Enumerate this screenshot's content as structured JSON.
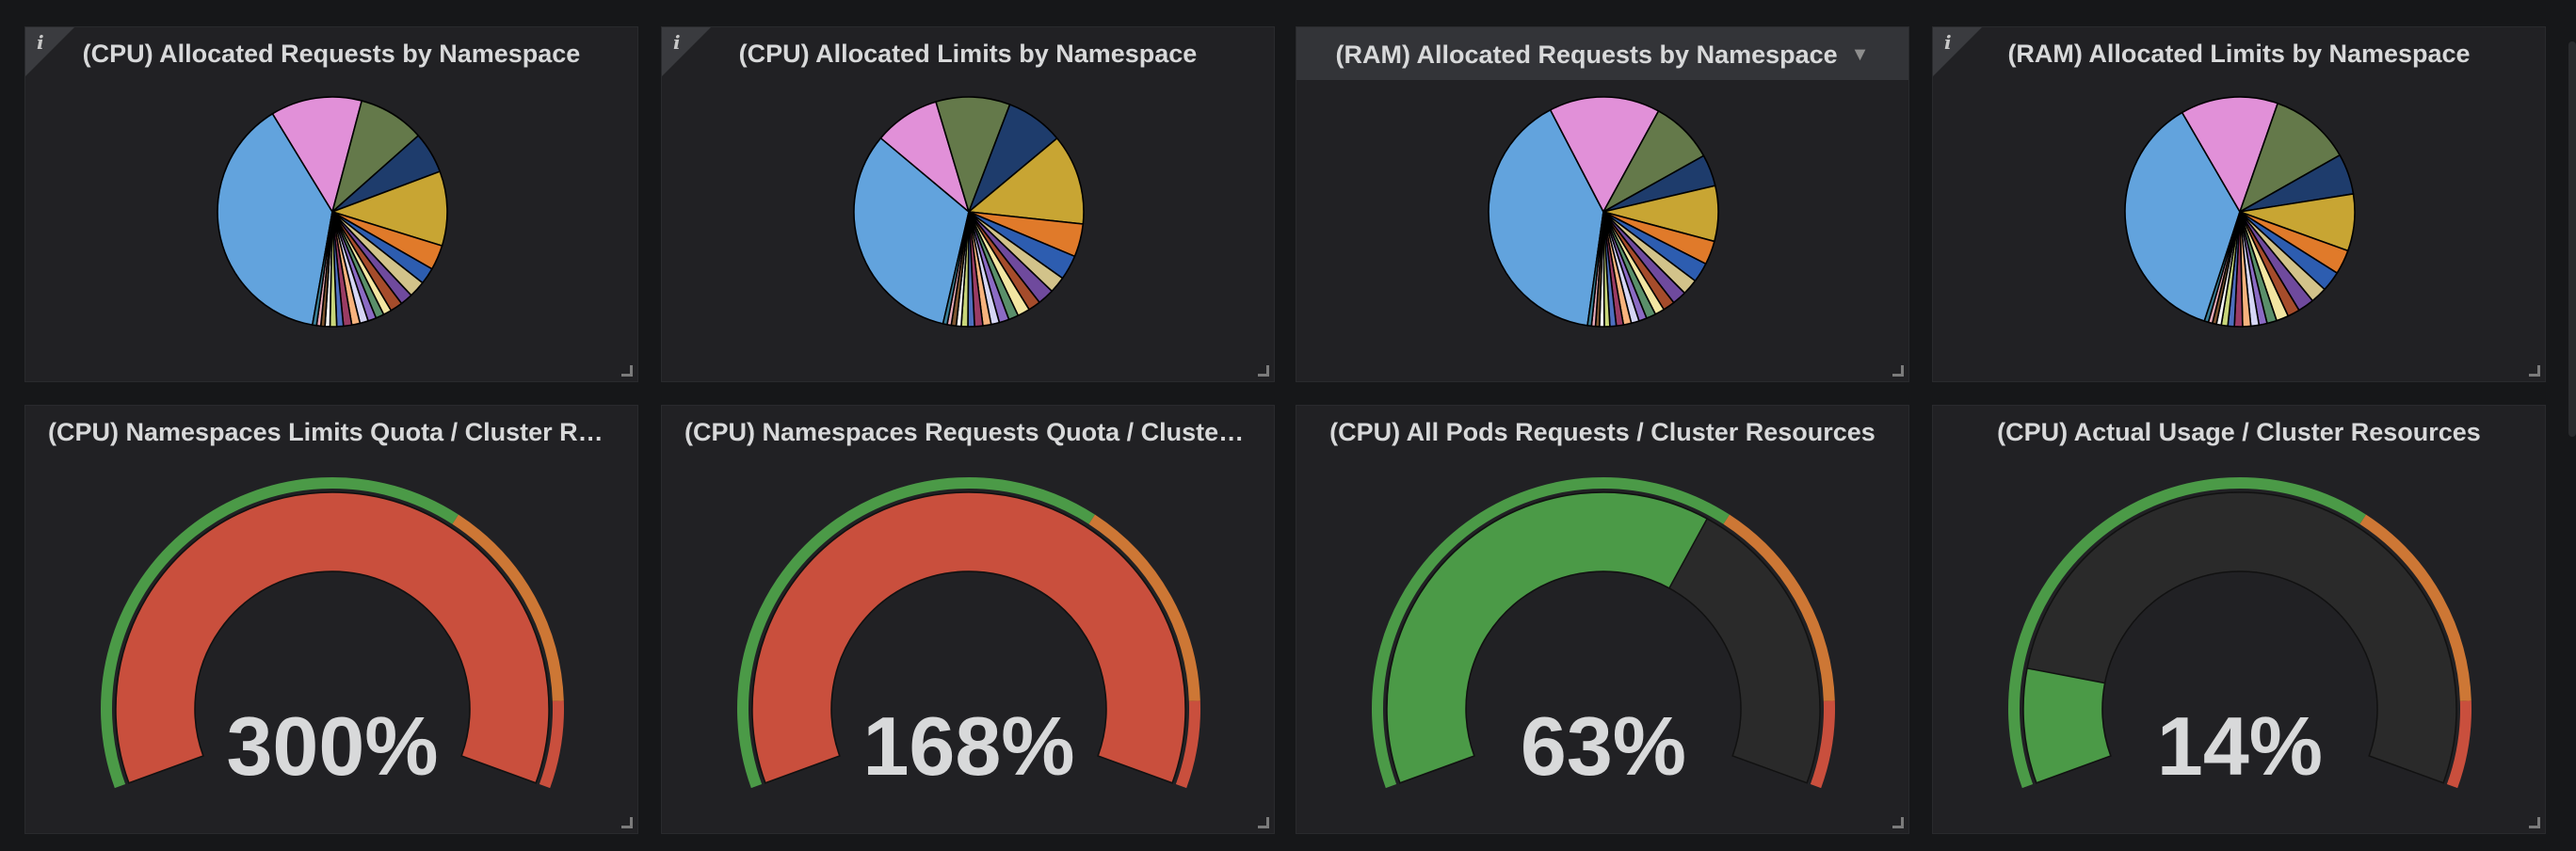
{
  "colors": {
    "background": "#161719",
    "panel": "#212124",
    "text": "#d8d9da",
    "green": "#4b9a47",
    "orange": "#cd7735",
    "red": "#c94f3d",
    "gauge_track": "#2a2a2a"
  },
  "pie_palette": [
    "#62a3dd",
    "#e190d8",
    "#64794a",
    "#1e3c6c",
    "#c8a533",
    "#e07a2a",
    "#2d5db0",
    "#d2c38a",
    "#6f4a9d",
    "#a54c2b",
    "#f3e6a2",
    "#5a8f6a",
    "#8b6bc4",
    "#d6d6f5",
    "#f7b37d",
    "#9a3c64",
    "#4e6fbf",
    "#c8d67a",
    "#f2f2f2",
    "#7e5530",
    "#e8a9b7",
    "#3a7f97"
  ],
  "chart_data": [
    {
      "type": "pie",
      "title": "(CPU) Allocated Requests by Namespace",
      "values": [
        33,
        11,
        8,
        5,
        9,
        3,
        2,
        2,
        1.5,
        1.5,
        1,
        1,
        1,
        1,
        1,
        1,
        0.8,
        0.8,
        0.6,
        0.5,
        0.5,
        0.5
      ],
      "start_deg": 100
    },
    {
      "type": "pie",
      "title": "(CPU) Allocated Limits by Namespace",
      "values": [
        28,
        8,
        9,
        7,
        11,
        4,
        3,
        2,
        2,
        1.5,
        1.5,
        1.2,
        1.2,
        1,
        1,
        1,
        0.8,
        0.8,
        0.6,
        0.6,
        0.5,
        0.5
      ],
      "start_deg": 103
    },
    {
      "type": "pie",
      "title": "(RAM) Allocated Requests by Namespace",
      "values": [
        36,
        14,
        8,
        4,
        7,
        3,
        2.5,
        2,
        1.8,
        1.5,
        1.2,
        1.2,
        1,
        1,
        1,
        0.9,
        0.8,
        0.7,
        0.6,
        0.5,
        0.5,
        0.5
      ],
      "start_deg": 98
    },
    {
      "type": "pie",
      "title": "(RAM) Allocated Limits by Namespace",
      "values": [
        32,
        12,
        10,
        5,
        7,
        3,
        2.5,
        2,
        2,
        1.5,
        1.5,
        1.2,
        1,
        1,
        1,
        1,
        0.8,
        0.8,
        0.6,
        0.5,
        0.5,
        0.5
      ],
      "start_deg": 108
    },
    {
      "type": "gauge",
      "title": "(CPU) Namespaces Limits Quota / Cluster Reso...",
      "value": 300,
      "unit": "%",
      "min": 0,
      "max": 100,
      "thresholds": [
        {
          "value": 0,
          "color": "#4b9a47"
        },
        {
          "value": 65,
          "color": "#cd7735"
        },
        {
          "value": 90,
          "color": "#c94f3d"
        }
      ]
    },
    {
      "type": "gauge",
      "title": "(CPU) Namespaces Requests Quota / Cluster R...",
      "value": 168,
      "unit": "%",
      "min": 0,
      "max": 100,
      "thresholds": [
        {
          "value": 0,
          "color": "#4b9a47"
        },
        {
          "value": 65,
          "color": "#cd7735"
        },
        {
          "value": 90,
          "color": "#c94f3d"
        }
      ]
    },
    {
      "type": "gauge",
      "title": "(CPU) All Pods Requests / Cluster Resources",
      "value": 63,
      "unit": "%",
      "min": 0,
      "max": 100,
      "thresholds": [
        {
          "value": 0,
          "color": "#4b9a47"
        },
        {
          "value": 65,
          "color": "#cd7735"
        },
        {
          "value": 90,
          "color": "#c94f3d"
        }
      ]
    },
    {
      "type": "gauge",
      "title": "(CPU) Actual Usage / Cluster Resources",
      "value": 14,
      "unit": "%",
      "min": 0,
      "max": 100,
      "thresholds": [
        {
          "value": 0,
          "color": "#4b9a47"
        },
        {
          "value": 65,
          "color": "#cd7735"
        },
        {
          "value": 90,
          "color": "#c94f3d"
        }
      ]
    }
  ],
  "panels": [
    {
      "title": "(CPU) Allocated Requests by Namespace",
      "info": "i"
    },
    {
      "title": "(CPU) Allocated Limits by Namespace",
      "info": "i"
    },
    {
      "title": "(RAM) Allocated Requests by Namespace",
      "info": "i",
      "menu_caret": "▼"
    },
    {
      "title": "(RAM) Allocated Limits by Namespace",
      "info": "i"
    },
    {
      "title": "(CPU) Namespaces Limits Quota / Cluster Reso...",
      "value_text": "300%"
    },
    {
      "title": "(CPU) Namespaces Requests Quota / Cluster R...",
      "value_text": "168%"
    },
    {
      "title": "(CPU) All Pods Requests / Cluster Resources",
      "value_text": "63%"
    },
    {
      "title": "(CPU) Actual Usage / Cluster Resources",
      "value_text": "14%"
    }
  ]
}
